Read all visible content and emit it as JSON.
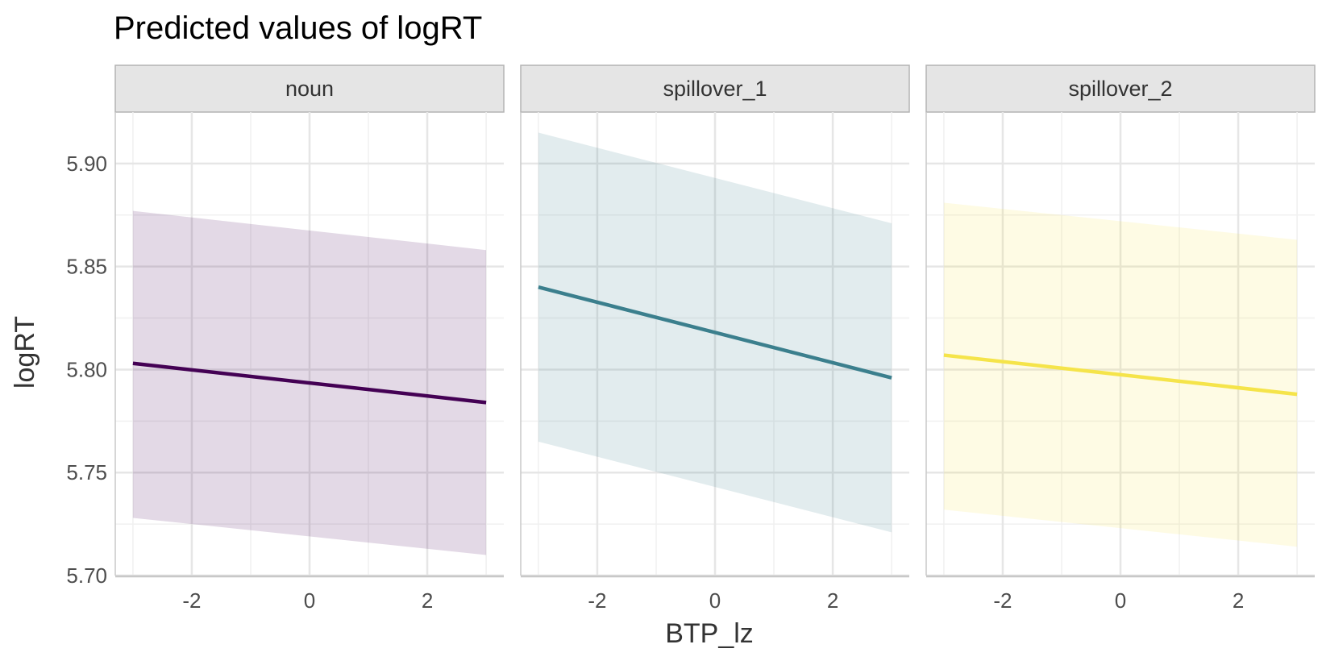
{
  "chart_data": {
    "type": "line",
    "title": "Predicted values of logRT",
    "xlabel": "BTP_lz",
    "ylabel": "logRT",
    "xlim": [
      -3.3,
      3.3
    ],
    "ylim": [
      5.7,
      5.925
    ],
    "x_ticks": [
      -2,
      0,
      2
    ],
    "x_tick_labels": [
      "-2",
      "0",
      "2"
    ],
    "y_ticks": [
      5.7,
      5.75,
      5.8,
      5.85,
      5.9
    ],
    "y_tick_labels": [
      "5.70",
      "5.75",
      "5.80",
      "5.85",
      "5.90"
    ],
    "grid": true,
    "legend": "none",
    "panels": [
      {
        "name": "noun",
        "color": "#440154",
        "x": [
          -3,
          3
        ],
        "predicted": [
          5.803,
          5.784
        ],
        "ci_low": [
          5.728,
          5.71
        ],
        "ci_high": [
          5.877,
          5.858
        ]
      },
      {
        "name": "spillover_1",
        "color": "#3b7f8d",
        "x": [
          -3,
          3
        ],
        "predicted": [
          5.84,
          5.796
        ],
        "ci_low": [
          5.765,
          5.721
        ],
        "ci_high": [
          5.915,
          5.871
        ]
      },
      {
        "name": "spillover_2",
        "color": "#f5e44a",
        "x": [
          -3,
          3
        ],
        "predicted": [
          5.807,
          5.788
        ],
        "ci_low": [
          5.732,
          5.714
        ],
        "ci_high": [
          5.881,
          5.863
        ]
      }
    ]
  }
}
